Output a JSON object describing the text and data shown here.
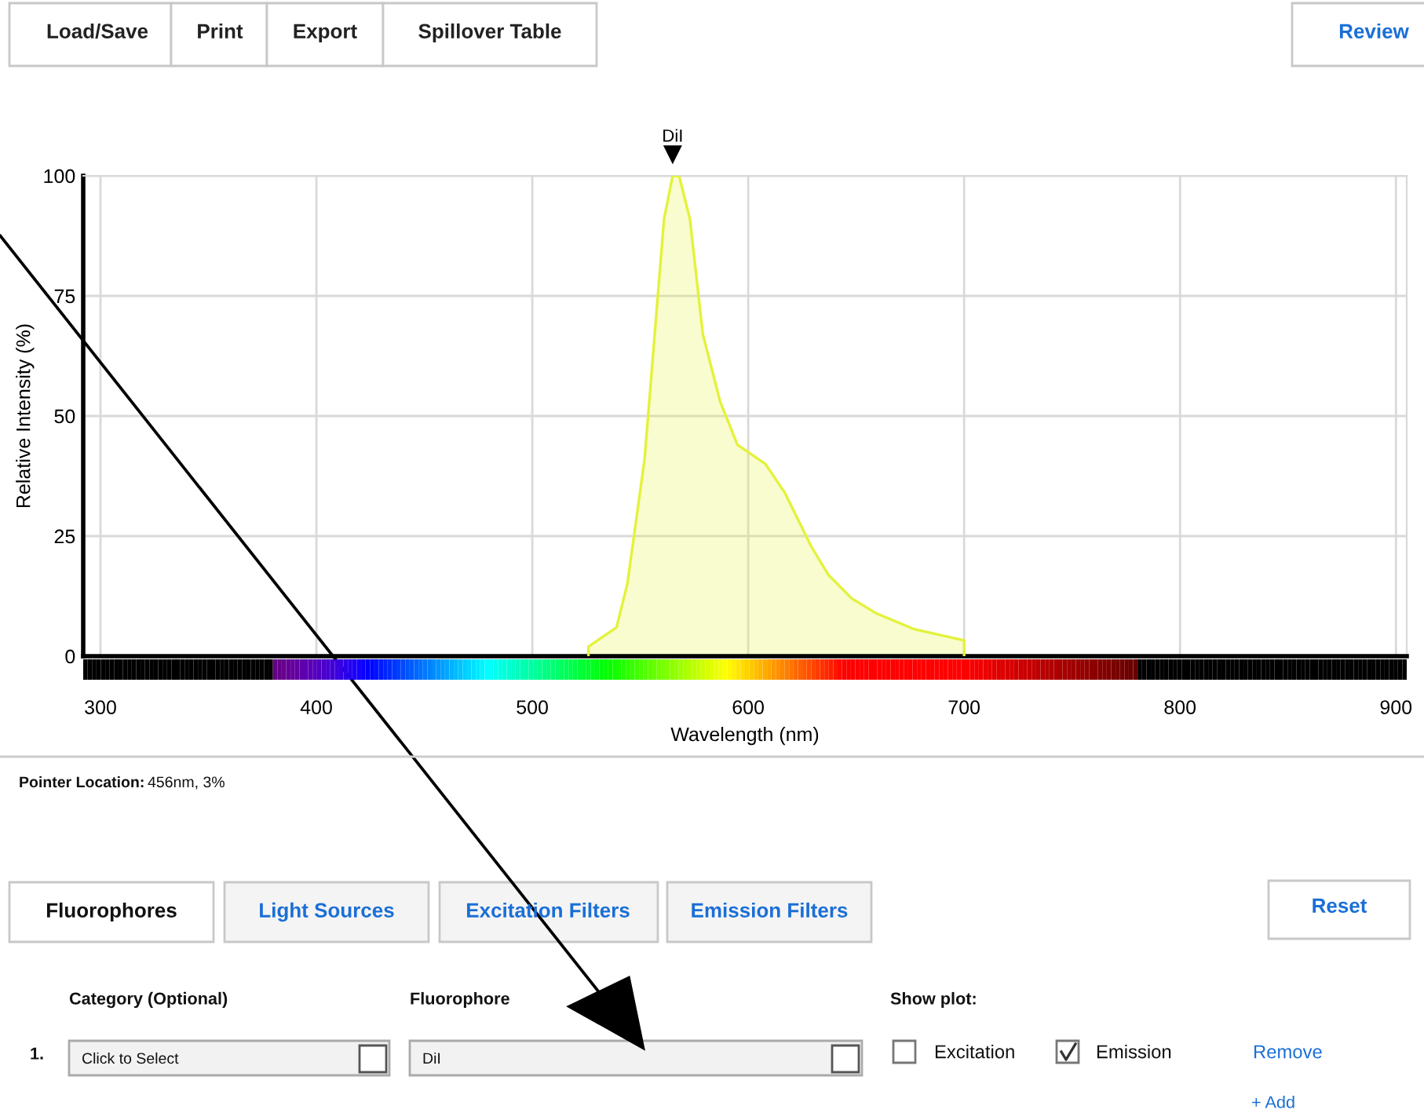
{
  "chart_data": {
    "type": "area",
    "xlabel": "Wavelength (nm)",
    "ylabel": "Relative Intensity (%)",
    "series": [
      {
        "name": "DiI",
        "color": "#e3f23a",
        "x": [
          526,
          526,
          539,
          544,
          552,
          561,
          565,
          568,
          573,
          579,
          587,
          595,
          608,
          617,
          629,
          637,
          648,
          659,
          677,
          700,
          700
        ],
        "values": [
          0,
          2,
          6,
          15,
          41,
          91,
          100,
          100,
          91,
          67,
          53,
          44,
          40,
          34,
          23,
          17,
          12,
          9,
          5.6,
          3.3,
          0
        ]
      }
    ],
    "xlim": [
      292,
      905
    ],
    "xticks": [
      300,
      400,
      500,
      600,
      700,
      800,
      900
    ],
    "ylim": [
      0,
      100
    ],
    "yticks": [
      0,
      25,
      50,
      75,
      100
    ],
    "grid": true,
    "annotations": [
      "Load/Save",
      "Print",
      "Export",
      "Spillover Table",
      "Review",
      "Pointer Location:",
      "456nm, 3%",
      "Fluorophores",
      "Light Sources",
      "Excitation Filters",
      "Emission Filters",
      "Reset",
      "Category (Optional)",
      "Fluorophore",
      "Show plot:",
      "1.",
      "Click to Select",
      "DiI",
      "Excitation",
      "Emission",
      "Remove",
      "+ Add"
    ]
  }
}
